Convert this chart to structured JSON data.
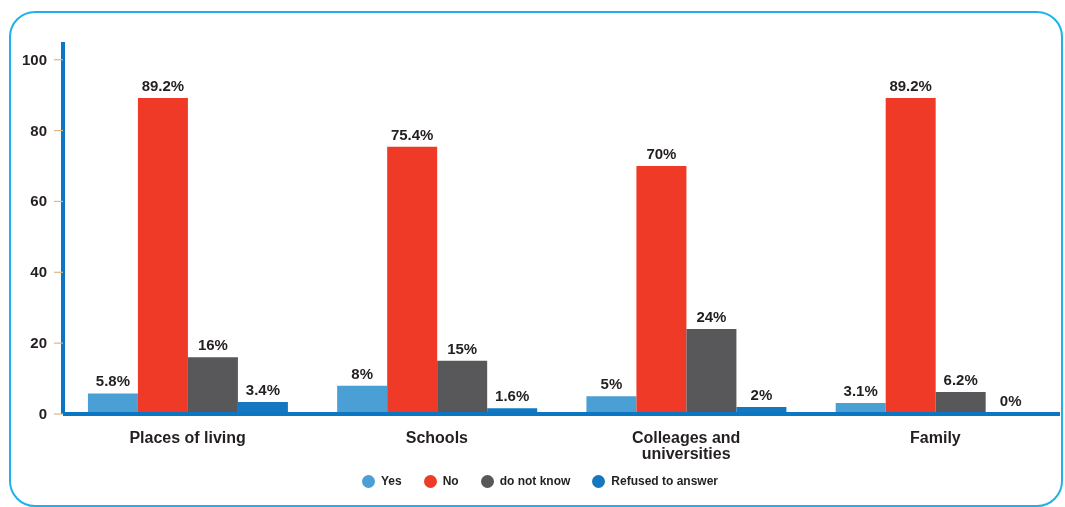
{
  "chart_data": {
    "type": "bar",
    "categories": [
      "Places of living",
      "Schools",
      "Colleages and universities",
      "Family"
    ],
    "series": [
      {
        "name": "Yes",
        "color": "#4a9fd5",
        "values": [
          5.8,
          8,
          5,
          3.1
        ],
        "value_labels": [
          "5.8%",
          "8%",
          "5%",
          "3.1%"
        ]
      },
      {
        "name": "No",
        "color": "#ee3a26",
        "values": [
          89.2,
          75.4,
          70,
          89.2
        ],
        "value_labels": [
          "89.2%",
          "75.4%",
          "70%",
          "89.2%"
        ]
      },
      {
        "name": "do not know",
        "color": "#58585a",
        "values": [
          16,
          15,
          24,
          6.2
        ],
        "value_labels": [
          "16%",
          "15%",
          "24%",
          "6.2%"
        ]
      },
      {
        "name": "Refused to answer",
        "color": "#1577c0",
        "values": [
          3.4,
          1.6,
          2,
          0
        ],
        "value_labels": [
          "3.4%",
          "1.6%",
          "2%",
          "0%"
        ]
      }
    ],
    "ylim": [
      0,
      105
    ],
    "yticks": [
      0,
      20,
      40,
      60,
      80,
      100
    ],
    "legend": "bottom"
  }
}
